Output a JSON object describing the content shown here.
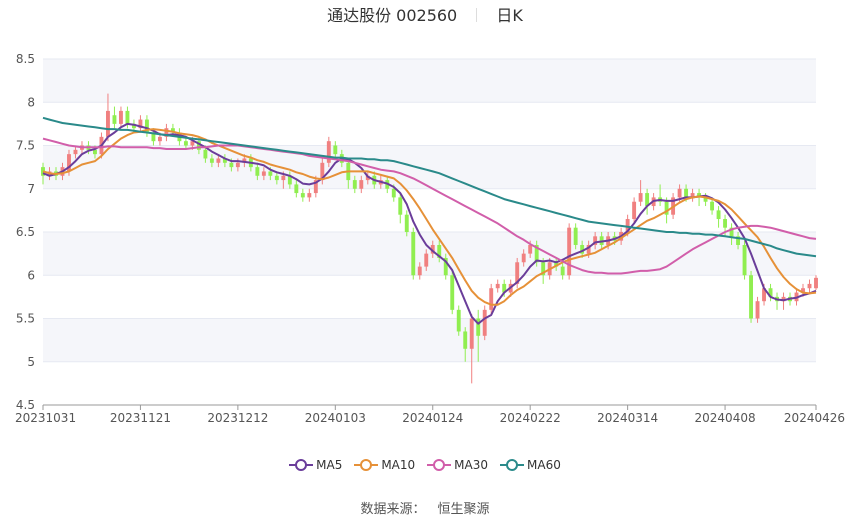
{
  "header": {
    "title": "通达股份 002560",
    "period": "日K"
  },
  "source": {
    "label": "数据来源：",
    "name": "恒生聚源"
  },
  "colors": {
    "up": "#f08080",
    "down": "#90ee50",
    "MA5": "#6a3d9a",
    "MA10": "#e69138",
    "MA30": "#d15eaa",
    "MA60": "#2a8a8a",
    "grid_band": "#f5f6fa",
    "grid_line": "#e6e9f2"
  },
  "chart_data": {
    "type": "candlestick",
    "ylim": [
      4.5,
      8.5
    ],
    "yticks": [
      4.5,
      5,
      5.5,
      6,
      6.5,
      7,
      7.5,
      8,
      8.5
    ],
    "x_tick_labels": [
      "20231031",
      "20231121",
      "20231212",
      "20240103",
      "20240124",
      "20240222",
      "20240314",
      "20240408",
      "20240426"
    ],
    "x_tick_index": [
      0,
      15,
      30,
      45,
      60,
      75,
      90,
      105,
      119
    ],
    "legend": [
      "MA5",
      "MA10",
      "MA30",
      "MA60"
    ],
    "candles": [
      [
        7.25,
        7.15,
        7.3,
        7.05
      ],
      [
        7.15,
        7.2,
        7.25,
        7.1
      ],
      [
        7.2,
        7.15,
        7.25,
        7.1
      ],
      [
        7.15,
        7.25,
        7.3,
        7.1
      ],
      [
        7.2,
        7.4,
        7.45,
        7.15
      ],
      [
        7.4,
        7.45,
        7.5,
        7.35
      ],
      [
        7.45,
        7.5,
        7.55,
        7.4
      ],
      [
        7.5,
        7.45,
        7.55,
        7.4
      ],
      [
        7.45,
        7.4,
        7.5,
        7.35
      ],
      [
        7.4,
        7.6,
        7.65,
        7.35
      ],
      [
        7.6,
        7.9,
        8.1,
        7.55
      ],
      [
        7.85,
        7.75,
        7.95,
        7.7
      ],
      [
        7.75,
        7.9,
        7.95,
        7.7
      ],
      [
        7.9,
        7.75,
        7.95,
        7.7
      ],
      [
        7.75,
        7.7,
        7.8,
        7.65
      ],
      [
        7.7,
        7.8,
        7.85,
        7.65
      ],
      [
        7.8,
        7.65,
        7.85,
        7.6
      ],
      [
        7.65,
        7.55,
        7.7,
        7.5
      ],
      [
        7.55,
        7.6,
        7.65,
        7.5
      ],
      [
        7.6,
        7.7,
        7.75,
        7.55
      ],
      [
        7.7,
        7.65,
        7.75,
        7.6
      ],
      [
        7.65,
        7.55,
        7.7,
        7.5
      ],
      [
        7.55,
        7.5,
        7.6,
        7.45
      ],
      [
        7.5,
        7.55,
        7.6,
        7.45
      ],
      [
        7.55,
        7.45,
        7.6,
        7.4
      ],
      [
        7.45,
        7.35,
        7.5,
        7.3
      ],
      [
        7.35,
        7.3,
        7.4,
        7.25
      ],
      [
        7.3,
        7.35,
        7.4,
        7.25
      ],
      [
        7.35,
        7.3,
        7.4,
        7.25
      ],
      [
        7.3,
        7.25,
        7.35,
        7.2
      ],
      [
        7.25,
        7.3,
        7.35,
        7.2
      ],
      [
        7.3,
        7.35,
        7.4,
        7.25
      ],
      [
        7.35,
        7.25,
        7.4,
        7.2
      ],
      [
        7.25,
        7.15,
        7.3,
        7.1
      ],
      [
        7.15,
        7.2,
        7.25,
        7.1
      ],
      [
        7.2,
        7.15,
        7.25,
        7.1
      ],
      [
        7.15,
        7.1,
        7.2,
        7.05
      ],
      [
        7.1,
        7.15,
        7.2,
        7.0
      ],
      [
        7.15,
        7.05,
        7.2,
        7.0
      ],
      [
        7.05,
        6.95,
        7.1,
        6.9
      ],
      [
        6.95,
        6.9,
        7.0,
        6.85
      ],
      [
        6.9,
        6.95,
        7.0,
        6.85
      ],
      [
        6.95,
        7.1,
        7.15,
        6.9
      ],
      [
        7.1,
        7.3,
        7.35,
        7.05
      ],
      [
        7.3,
        7.55,
        7.6,
        7.25
      ],
      [
        7.5,
        7.4,
        7.55,
        7.35
      ],
      [
        7.4,
        7.3,
        7.45,
        7.25
      ],
      [
        7.3,
        7.1,
        7.35,
        7.0
      ],
      [
        7.1,
        7.0,
        7.15,
        6.95
      ],
      [
        7.0,
        7.1,
        7.15,
        6.95
      ],
      [
        7.1,
        7.15,
        7.2,
        7.05
      ],
      [
        7.15,
        7.05,
        7.2,
        7.0
      ],
      [
        7.05,
        7.1,
        7.15,
        7.0
      ],
      [
        7.1,
        7.0,
        7.15,
        6.95
      ],
      [
        7.0,
        6.9,
        7.05,
        6.85
      ],
      [
        6.9,
        6.7,
        6.95,
        6.6
      ],
      [
        6.7,
        6.5,
        6.75,
        6.45
      ],
      [
        6.5,
        6.0,
        6.55,
        5.95
      ],
      [
        6.0,
        6.1,
        6.15,
        5.95
      ],
      [
        6.1,
        6.25,
        6.3,
        6.05
      ],
      [
        6.25,
        6.35,
        6.4,
        6.2
      ],
      [
        6.35,
        6.2,
        6.4,
        6.15
      ],
      [
        6.2,
        6.0,
        6.25,
        5.95
      ],
      [
        6.0,
        5.6,
        6.05,
        5.55
      ],
      [
        5.6,
        5.35,
        5.65,
        5.3
      ],
      [
        5.35,
        5.15,
        5.4,
        5.0
      ],
      [
        5.15,
        5.5,
        5.55,
        4.75
      ],
      [
        5.5,
        5.3,
        5.6,
        5.0
      ],
      [
        5.3,
        5.6,
        5.65,
        5.25
      ],
      [
        5.6,
        5.85,
        5.9,
        5.55
      ],
      [
        5.85,
        5.9,
        5.95,
        5.8
      ],
      [
        5.9,
        5.8,
        5.95,
        5.75
      ],
      [
        5.8,
        5.9,
        5.95,
        5.75
      ],
      [
        5.9,
        6.15,
        6.2,
        5.85
      ],
      [
        6.15,
        6.25,
        6.3,
        6.1
      ],
      [
        6.25,
        6.35,
        6.4,
        6.2
      ],
      [
        6.35,
        6.15,
        6.4,
        6.1
      ],
      [
        6.15,
        6.0,
        6.2,
        5.9
      ],
      [
        6.0,
        6.15,
        6.2,
        5.95
      ],
      [
        6.15,
        6.1,
        6.2,
        6.05
      ],
      [
        6.1,
        6.0,
        6.15,
        5.95
      ],
      [
        6.0,
        6.55,
        6.6,
        5.95
      ],
      [
        6.55,
        6.35,
        6.6,
        6.3
      ],
      [
        6.35,
        6.25,
        6.4,
        6.2
      ],
      [
        6.25,
        6.35,
        6.4,
        6.2
      ],
      [
        6.35,
        6.45,
        6.5,
        6.3
      ],
      [
        6.45,
        6.35,
        6.5,
        6.3
      ],
      [
        6.35,
        6.45,
        6.5,
        6.3
      ],
      [
        6.45,
        6.4,
        6.5,
        6.35
      ],
      [
        6.4,
        6.5,
        6.55,
        6.35
      ],
      [
        6.5,
        6.65,
        6.7,
        6.45
      ],
      [
        6.65,
        6.85,
        6.9,
        6.6
      ],
      [
        6.85,
        6.95,
        7.1,
        6.8
      ],
      [
        6.95,
        6.8,
        7.0,
        6.7
      ],
      [
        6.8,
        6.9,
        6.95,
        6.75
      ],
      [
        6.9,
        6.85,
        7.05,
        6.8
      ],
      [
        6.85,
        6.7,
        6.9,
        6.6
      ],
      [
        6.7,
        6.9,
        6.95,
        6.65
      ],
      [
        6.9,
        7.0,
        7.05,
        6.85
      ],
      [
        7.0,
        6.9,
        7.05,
        6.85
      ],
      [
        6.9,
        6.95,
        7.0,
        6.85
      ],
      [
        6.95,
        6.9,
        7.0,
        6.8
      ],
      [
        6.9,
        6.85,
        6.95,
        6.8
      ],
      [
        6.85,
        6.75,
        6.9,
        6.7
      ],
      [
        6.75,
        6.65,
        6.8,
        6.55
      ],
      [
        6.65,
        6.55,
        6.7,
        6.45
      ],
      [
        6.55,
        6.45,
        6.6,
        6.35
      ],
      [
        6.45,
        6.35,
        6.5,
        6.3
      ],
      [
        6.35,
        6.0,
        6.4,
        5.95
      ],
      [
        6.0,
        5.5,
        6.05,
        5.45
      ],
      [
        5.5,
        5.7,
        5.75,
        5.45
      ],
      [
        5.7,
        5.85,
        5.9,
        5.65
      ],
      [
        5.85,
        5.75,
        5.9,
        5.7
      ],
      [
        5.75,
        5.7,
        5.8,
        5.6
      ],
      [
        5.7,
        5.75,
        5.8,
        5.6
      ],
      [
        5.75,
        5.7,
        5.8,
        5.65
      ],
      [
        5.7,
        5.8,
        5.85,
        5.65
      ],
      [
        5.8,
        5.85,
        5.9,
        5.75
      ],
      [
        5.85,
        5.9,
        5.95,
        5.8
      ],
      [
        5.85,
        5.97,
        6.0,
        5.83
      ]
    ],
    "ma": {
      "MA5": [
        7.18,
        7.15,
        7.17,
        7.2,
        7.25,
        7.32,
        7.4,
        7.44,
        7.46,
        7.5,
        7.6,
        7.65,
        7.71,
        7.75,
        7.74,
        7.72,
        7.7,
        7.67,
        7.63,
        7.62,
        7.63,
        7.62,
        7.6,
        7.56,
        7.52,
        7.48,
        7.43,
        7.39,
        7.35,
        7.32,
        7.32,
        7.31,
        7.3,
        7.29,
        7.27,
        7.22,
        7.19,
        7.17,
        7.15,
        7.11,
        7.06,
        7.05,
        7.07,
        7.12,
        7.2,
        7.3,
        7.35,
        7.34,
        7.3,
        7.24,
        7.14,
        7.1,
        7.08,
        7.06,
        7.02,
        6.95,
        6.82,
        6.62,
        6.47,
        6.35,
        6.28,
        6.22,
        6.16,
        6.06,
        5.88,
        5.7,
        5.52,
        5.44,
        5.5,
        5.54,
        5.7,
        5.8,
        5.86,
        5.92,
        6.0,
        6.1,
        6.17,
        6.16,
        6.17,
        6.15,
        6.18,
        6.22,
        6.25,
        6.28,
        6.32,
        6.38,
        6.39,
        6.4,
        6.42,
        6.45,
        6.51,
        6.6,
        6.71,
        6.8,
        6.86,
        6.87,
        6.86,
        6.86,
        6.88,
        6.9,
        6.9,
        6.91,
        6.92,
        6.89,
        6.84,
        6.76,
        6.66,
        6.55,
        6.43,
        6.25,
        6.05,
        5.85,
        5.75,
        5.72,
        5.71,
        5.73,
        5.74,
        5.77,
        5.79,
        5.82
      ],
      "MA10": [
        7.2,
        7.18,
        7.17,
        7.18,
        7.2,
        7.24,
        7.28,
        7.3,
        7.32,
        7.38,
        7.46,
        7.52,
        7.58,
        7.62,
        7.65,
        7.66,
        7.68,
        7.69,
        7.68,
        7.67,
        7.66,
        7.64,
        7.63,
        7.62,
        7.6,
        7.57,
        7.53,
        7.5,
        7.47,
        7.44,
        7.41,
        7.38,
        7.36,
        7.33,
        7.31,
        7.28,
        7.26,
        7.24,
        7.22,
        7.19,
        7.17,
        7.14,
        7.12,
        7.11,
        7.13,
        7.16,
        7.19,
        7.2,
        7.2,
        7.2,
        7.2,
        7.18,
        7.16,
        7.14,
        7.12,
        7.06,
        6.98,
        6.88,
        6.77,
        6.65,
        6.53,
        6.42,
        6.31,
        6.2,
        6.07,
        5.94,
        5.82,
        5.74,
        5.69,
        5.66,
        5.66,
        5.7,
        5.77,
        5.83,
        5.87,
        5.93,
        5.99,
        6.03,
        6.07,
        6.11,
        6.15,
        6.18,
        6.2,
        6.22,
        6.24,
        6.26,
        6.3,
        6.34,
        6.38,
        6.43,
        6.48,
        6.53,
        6.58,
        6.63,
        6.66,
        6.7,
        6.74,
        6.79,
        6.84,
        6.88,
        6.9,
        6.91,
        6.9,
        6.88,
        6.86,
        6.82,
        6.76,
        6.68,
        6.6,
        6.52,
        6.44,
        6.33,
        6.2,
        6.08,
        5.98,
        5.9,
        5.84,
        5.8,
        5.79,
        5.8
      ],
      "MA30": [
        7.58,
        7.56,
        7.54,
        7.52,
        7.5,
        7.49,
        7.48,
        7.48,
        7.48,
        7.48,
        7.49,
        7.49,
        7.48,
        7.48,
        7.48,
        7.48,
        7.48,
        7.47,
        7.47,
        7.46,
        7.46,
        7.46,
        7.46,
        7.47,
        7.48,
        7.48,
        7.49,
        7.5,
        7.5,
        7.5,
        7.5,
        7.49,
        7.48,
        7.47,
        7.46,
        7.45,
        7.44,
        7.43,
        7.42,
        7.41,
        7.4,
        7.38,
        7.37,
        7.36,
        7.35,
        7.34,
        7.33,
        7.32,
        7.3,
        7.28,
        7.26,
        7.24,
        7.22,
        7.21,
        7.2,
        7.18,
        7.15,
        7.12,
        7.08,
        7.04,
        7.0,
        6.96,
        6.92,
        6.88,
        6.84,
        6.8,
        6.76,
        6.72,
        6.68,
        6.64,
        6.6,
        6.55,
        6.5,
        6.45,
        6.41,
        6.36,
        6.32,
        6.28,
        6.24,
        6.2,
        6.16,
        6.12,
        6.09,
        6.06,
        6.04,
        6.03,
        6.03,
        6.02,
        6.02,
        6.02,
        6.03,
        6.04,
        6.05,
        6.05,
        6.06,
        6.07,
        6.1,
        6.15,
        6.2,
        6.25,
        6.3,
        6.34,
        6.38,
        6.42,
        6.46,
        6.5,
        6.53,
        6.55,
        6.56,
        6.57,
        6.57,
        6.56,
        6.55,
        6.53,
        6.51,
        6.49,
        6.47,
        6.45,
        6.43,
        6.42
      ],
      "MA60": [
        7.82,
        7.8,
        7.78,
        7.76,
        7.75,
        7.74,
        7.73,
        7.72,
        7.71,
        7.7,
        7.69,
        7.69,
        7.68,
        7.68,
        7.67,
        7.66,
        7.65,
        7.64,
        7.63,
        7.62,
        7.61,
        7.6,
        7.59,
        7.58,
        7.57,
        7.56,
        7.55,
        7.54,
        7.53,
        7.52,
        7.51,
        7.5,
        7.49,
        7.48,
        7.47,
        7.46,
        7.45,
        7.44,
        7.43,
        7.42,
        7.41,
        7.4,
        7.39,
        7.38,
        7.37,
        7.36,
        7.36,
        7.35,
        7.35,
        7.35,
        7.34,
        7.34,
        7.33,
        7.33,
        7.32,
        7.3,
        7.28,
        7.26,
        7.24,
        7.22,
        7.2,
        7.18,
        7.15,
        7.12,
        7.09,
        7.06,
        7.03,
        7.0,
        6.97,
        6.94,
        6.91,
        6.88,
        6.86,
        6.84,
        6.82,
        6.8,
        6.78,
        6.76,
        6.74,
        6.72,
        6.7,
        6.68,
        6.66,
        6.64,
        6.62,
        6.61,
        6.6,
        6.59,
        6.58,
        6.57,
        6.56,
        6.55,
        6.54,
        6.53,
        6.52,
        6.51,
        6.5,
        6.5,
        6.49,
        6.49,
        6.48,
        6.48,
        6.47,
        6.47,
        6.46,
        6.45,
        6.44,
        6.43,
        6.42,
        6.4,
        6.38,
        6.36,
        6.34,
        6.31,
        6.29,
        6.27,
        6.25,
        6.24,
        6.23,
        6.22
      ]
    }
  }
}
